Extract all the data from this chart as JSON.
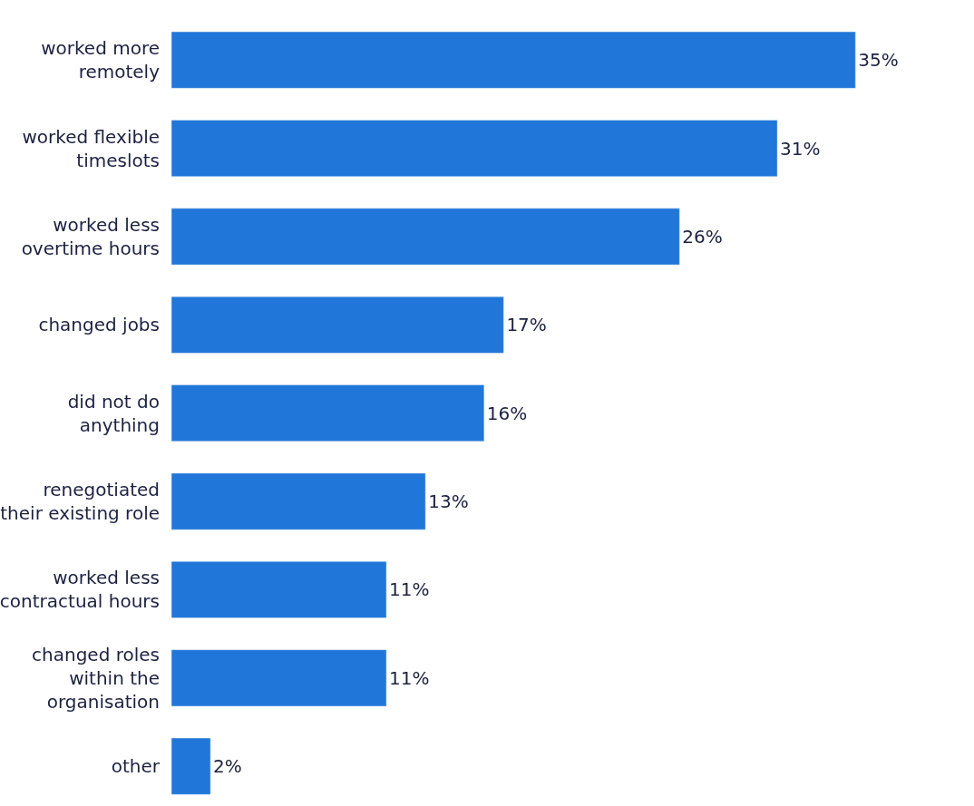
{
  "chart_data": {
    "type": "bar",
    "orientation": "horizontal",
    "categories": [
      "worked more\nremotely",
      "worked flexible\ntimeslots",
      "worked less\novertime hours",
      "changed jobs",
      "did not do\nanything",
      "renegotiated\ntheir existing role",
      "worked less\ncontractual hours",
      "changed roles\nwithin the\norganisation",
      "other"
    ],
    "values": [
      35,
      31,
      26,
      17,
      16,
      13,
      11,
      11,
      2
    ],
    "value_labels": [
      "35%",
      "31%",
      "26%",
      "17%",
      "16%",
      "13%",
      "11%",
      "11%",
      "2%"
    ],
    "color": "#2176d9",
    "legend": false
  }
}
